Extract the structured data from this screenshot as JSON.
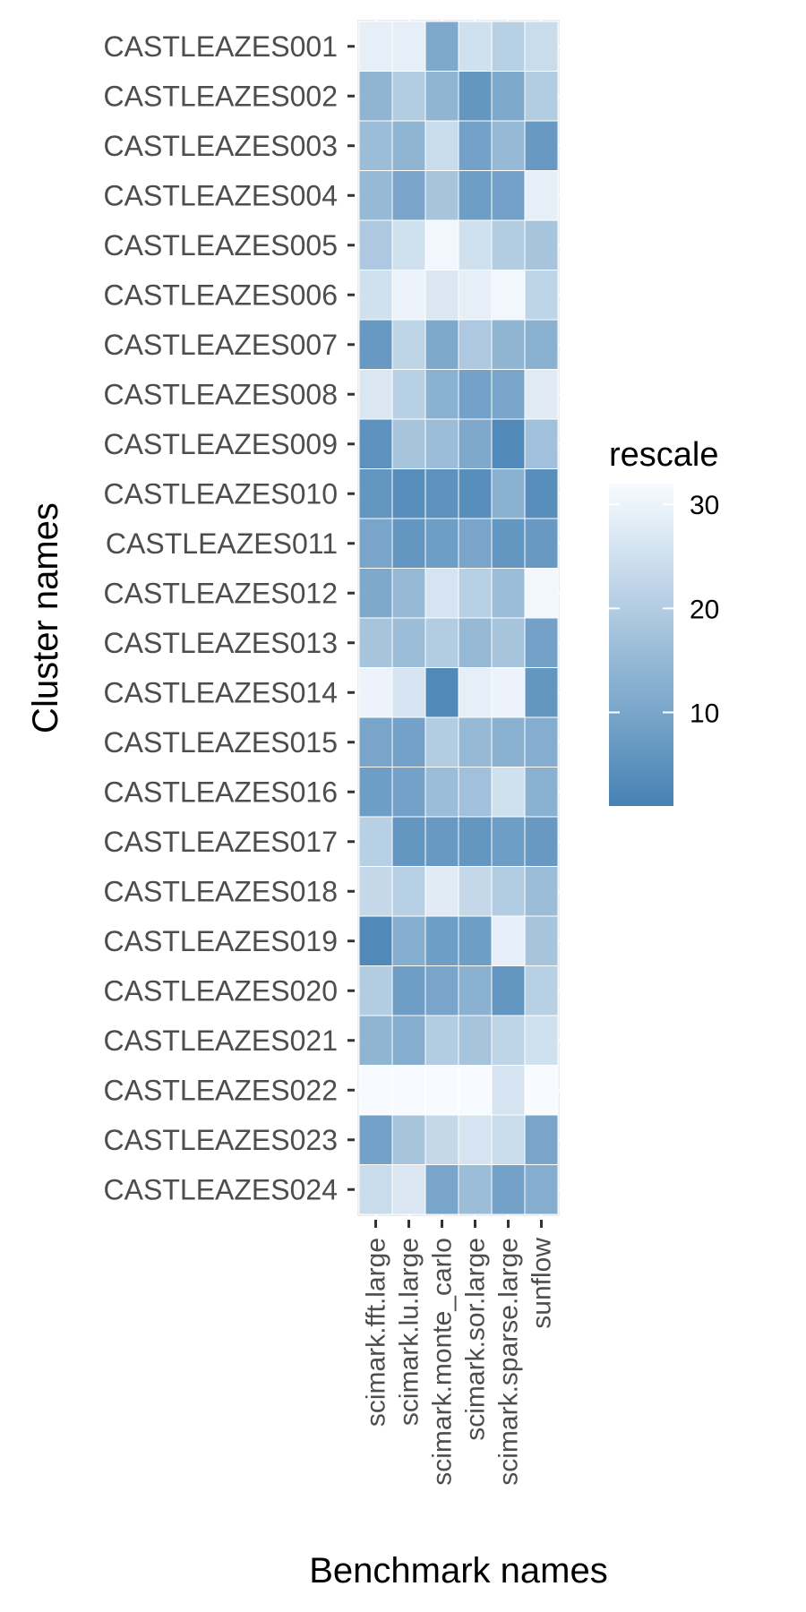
{
  "chart_data": {
    "type": "heatmap",
    "xlabel": "Benchmark names",
    "ylabel": "Cluster names",
    "x_categories": [
      "scimark.fft.large",
      "scimark.lu.large",
      "scimark.monte_carlo",
      "scimark.sor.large",
      "scimark.sparse.large",
      "sunflow"
    ],
    "y_categories": [
      "CASTLEAZES001",
      "CASTLEAZES002",
      "CASTLEAZES003",
      "CASTLEAZES004",
      "CASTLEAZES005",
      "CASTLEAZES006",
      "CASTLEAZES007",
      "CASTLEAZES008",
      "CASTLEAZES009",
      "CASTLEAZES010",
      "CASTLEAZES011",
      "CASTLEAZES012",
      "CASTLEAZES013",
      "CASTLEAZES014",
      "CASTLEAZES015",
      "CASTLEAZES016",
      "CASTLEAZES017",
      "CASTLEAZES018",
      "CASTLEAZES019",
      "CASTLEAZES020",
      "CASTLEAZES021",
      "CASTLEAZES022",
      "CASTLEAZES023",
      "CASTLEAZES024"
    ],
    "values": [
      [
        29,
        29,
        11,
        25,
        21,
        24
      ],
      [
        14,
        20,
        14,
        6,
        11,
        20
      ],
      [
        16,
        14,
        24,
        9,
        15,
        7
      ],
      [
        15,
        10,
        18,
        8,
        9,
        29
      ],
      [
        19,
        25,
        31,
        25,
        20,
        18
      ],
      [
        25,
        30,
        27,
        29,
        31,
        22
      ],
      [
        7,
        22,
        11,
        19,
        14,
        13
      ],
      [
        27,
        21,
        13,
        9,
        10,
        28
      ],
      [
        5,
        18,
        16,
        11,
        3,
        17
      ],
      [
        6,
        4,
        5,
        4,
        13,
        4
      ],
      [
        10,
        6,
        8,
        10,
        6,
        7
      ],
      [
        11,
        15,
        26,
        21,
        16,
        31
      ],
      [
        18,
        16,
        20,
        15,
        18,
        9
      ],
      [
        30,
        26,
        3,
        29,
        30,
        6
      ],
      [
        10,
        9,
        20,
        15,
        13,
        12
      ],
      [
        8,
        9,
        16,
        17,
        25,
        13
      ],
      [
        21,
        6,
        7,
        6,
        8,
        7
      ],
      [
        23,
        21,
        28,
        23,
        20,
        16
      ],
      [
        3,
        12,
        8,
        8,
        29,
        18
      ],
      [
        20,
        8,
        10,
        13,
        6,
        21
      ],
      [
        14,
        12,
        20,
        18,
        22,
        25
      ],
      [
        32,
        32,
        32,
        32,
        26,
        32
      ],
      [
        9,
        18,
        23,
        26,
        24,
        10
      ],
      [
        24,
        27,
        10,
        16,
        9,
        12
      ]
    ],
    "legend": {
      "title": "rescale",
      "ticks": [
        10,
        20,
        30
      ],
      "range": [
        1,
        32
      ],
      "low_color": "#4682B4",
      "high_color": "#F7FBFF",
      "position": "right"
    },
    "panel_background": "#ebebeb",
    "grid": true
  }
}
